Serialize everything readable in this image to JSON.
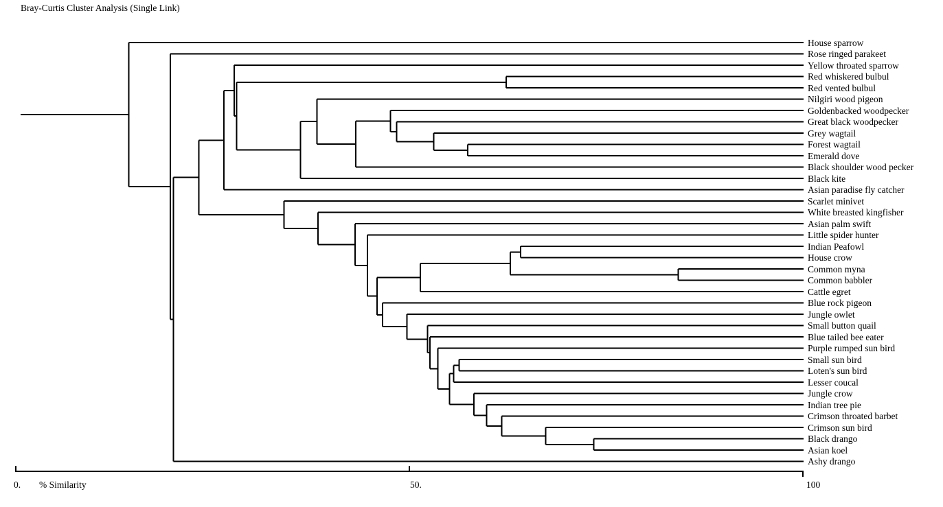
{
  "title": "Bray-Curtis Cluster Analysis (Single Link)",
  "axis": {
    "label": "% Similarity",
    "range": [
      0,
      100
    ],
    "ticks": [
      {
        "value": 0,
        "label": "0."
      },
      {
        "value": 50,
        "label": "50."
      },
      {
        "value": 100,
        "label": "100"
      }
    ]
  },
  "colors": {
    "line": "#000000",
    "background": "#ffffff",
    "text": "#000000"
  },
  "chart_data": {
    "type": "dendrogram",
    "title": "Bray-Curtis Cluster Analysis (Single Link)",
    "linkage": "single",
    "orientation": "horizontal-leaves-right",
    "xlabel": "% Similarity",
    "xlim": [
      0,
      100
    ],
    "root_line_start_sim": 0.7,
    "leaves": [
      "House sparrow",
      "Rose ringed parakeet",
      "Yellow throated sparrow",
      "Red whiskered bulbul",
      "Red vented bulbul",
      "Nilgiri wood pigeon",
      "Goldenbacked woodpecker",
      "Great black woodpecker",
      "Grey wagtail",
      "Forest wagtail",
      "Emerald dove",
      "Black shoulder wood pecker",
      "Black kite",
      "Asian paradise fly catcher",
      "Scarlet minivet",
      "White breasted kingfisher",
      "Asian palm swift",
      "Little spider hunter",
      "Indian Peafowl",
      "House crow",
      "Common myna",
      "Common babbler",
      "Cattle egret",
      "Blue rock pigeon",
      "Jungle owlet",
      "Small button quail",
      "Blue tailed bee eater",
      "Purple rumped sun bird",
      "Small sun bird",
      "Loten's sun bird",
      "Lesser coucal",
      "Jungle crow",
      "Indian tree pie",
      "Crimson throated barbet",
      "Crimson sun bird",
      "Black drango",
      "Asian koel",
      "Ashy drango"
    ],
    "merges": [
      {
        "id": "M1",
        "a": "L3",
        "b": "L4",
        "sim": 62.3
      },
      {
        "id": "M2",
        "a": "L9",
        "b": "L10",
        "sim": 57.4
      },
      {
        "id": "M3",
        "a": "L8",
        "b": "M2",
        "sim": 53.1
      },
      {
        "id": "M4",
        "a": "L7",
        "b": "M3",
        "sim": 48.4
      },
      {
        "id": "M5",
        "a": "L6",
        "b": "M4",
        "sim": 47.6
      },
      {
        "id": "M6",
        "a": "M5",
        "b": "L11",
        "sim": 43.2
      },
      {
        "id": "M7",
        "a": "L5",
        "b": "M6",
        "sim": 38.3
      },
      {
        "id": "M8",
        "a": "M7",
        "b": "L12",
        "sim": 36.2
      },
      {
        "id": "M9",
        "a": "M1",
        "b": "M8",
        "sim": 28.1
      },
      {
        "id": "M10",
        "a": "L2",
        "b": "M9",
        "sim": 27.8
      },
      {
        "id": "M11",
        "a": "M10",
        "b": "L13",
        "sim": 26.5
      },
      {
        "id": "M12",
        "a": "L18",
        "b": "L19",
        "sim": 64.1
      },
      {
        "id": "M13",
        "a": "L20",
        "b": "L21",
        "sim": 84.1
      },
      {
        "id": "M14",
        "a": "M12",
        "b": "M13",
        "sim": 62.8
      },
      {
        "id": "M15",
        "a": "M14",
        "b": "L22",
        "sim": 51.4
      },
      {
        "id": "M16",
        "a": "L28",
        "b": "L29",
        "sim": 56.3
      },
      {
        "id": "M17",
        "a": "M16",
        "b": "L30",
        "sim": 55.6
      },
      {
        "id": "M18",
        "a": "L35",
        "b": "L36",
        "sim": 73.4
      },
      {
        "id": "M19",
        "a": "L34",
        "b": "M18",
        "sim": 67.3
      },
      {
        "id": "M20",
        "a": "L33",
        "b": "M19",
        "sim": 61.7
      },
      {
        "id": "M21",
        "a": "L32",
        "b": "M20",
        "sim": 59.8
      },
      {
        "id": "M22",
        "a": "L31",
        "b": "M21",
        "sim": 58.2
      },
      {
        "id": "M23",
        "a": "M17",
        "b": "M22",
        "sim": 55.1
      },
      {
        "id": "M24",
        "a": "L27",
        "b": "M23",
        "sim": 53.6
      },
      {
        "id": "M25",
        "a": "L26",
        "b": "M24",
        "sim": 52.6
      },
      {
        "id": "M26",
        "a": "L25",
        "b": "M25",
        "sim": 52.3
      },
      {
        "id": "M27",
        "a": "L24",
        "b": "M26",
        "sim": 49.7
      },
      {
        "id": "M28",
        "a": "L23",
        "b": "M27",
        "sim": 46.6
      },
      {
        "id": "M29",
        "a": "M15",
        "b": "M28",
        "sim": 45.9
      },
      {
        "id": "M30",
        "a": "L17",
        "b": "M29",
        "sim": 44.7
      },
      {
        "id": "M31",
        "a": "L16",
        "b": "M30",
        "sim": 43.1
      },
      {
        "id": "M32",
        "a": "L15",
        "b": "M31",
        "sim": 38.4
      },
      {
        "id": "M33",
        "a": "L14",
        "b": "M32",
        "sim": 34.1
      },
      {
        "id": "M34",
        "a": "M11",
        "b": "M33",
        "sim": 23.3
      },
      {
        "id": "M35",
        "a": "M34",
        "b": "L37",
        "sim": 20.1
      },
      {
        "id": "M36",
        "a": "L1",
        "b": "M35",
        "sim": 19.7
      },
      {
        "id": "M37",
        "a": "L0",
        "b": "M36",
        "sim": 14.4
      }
    ]
  }
}
